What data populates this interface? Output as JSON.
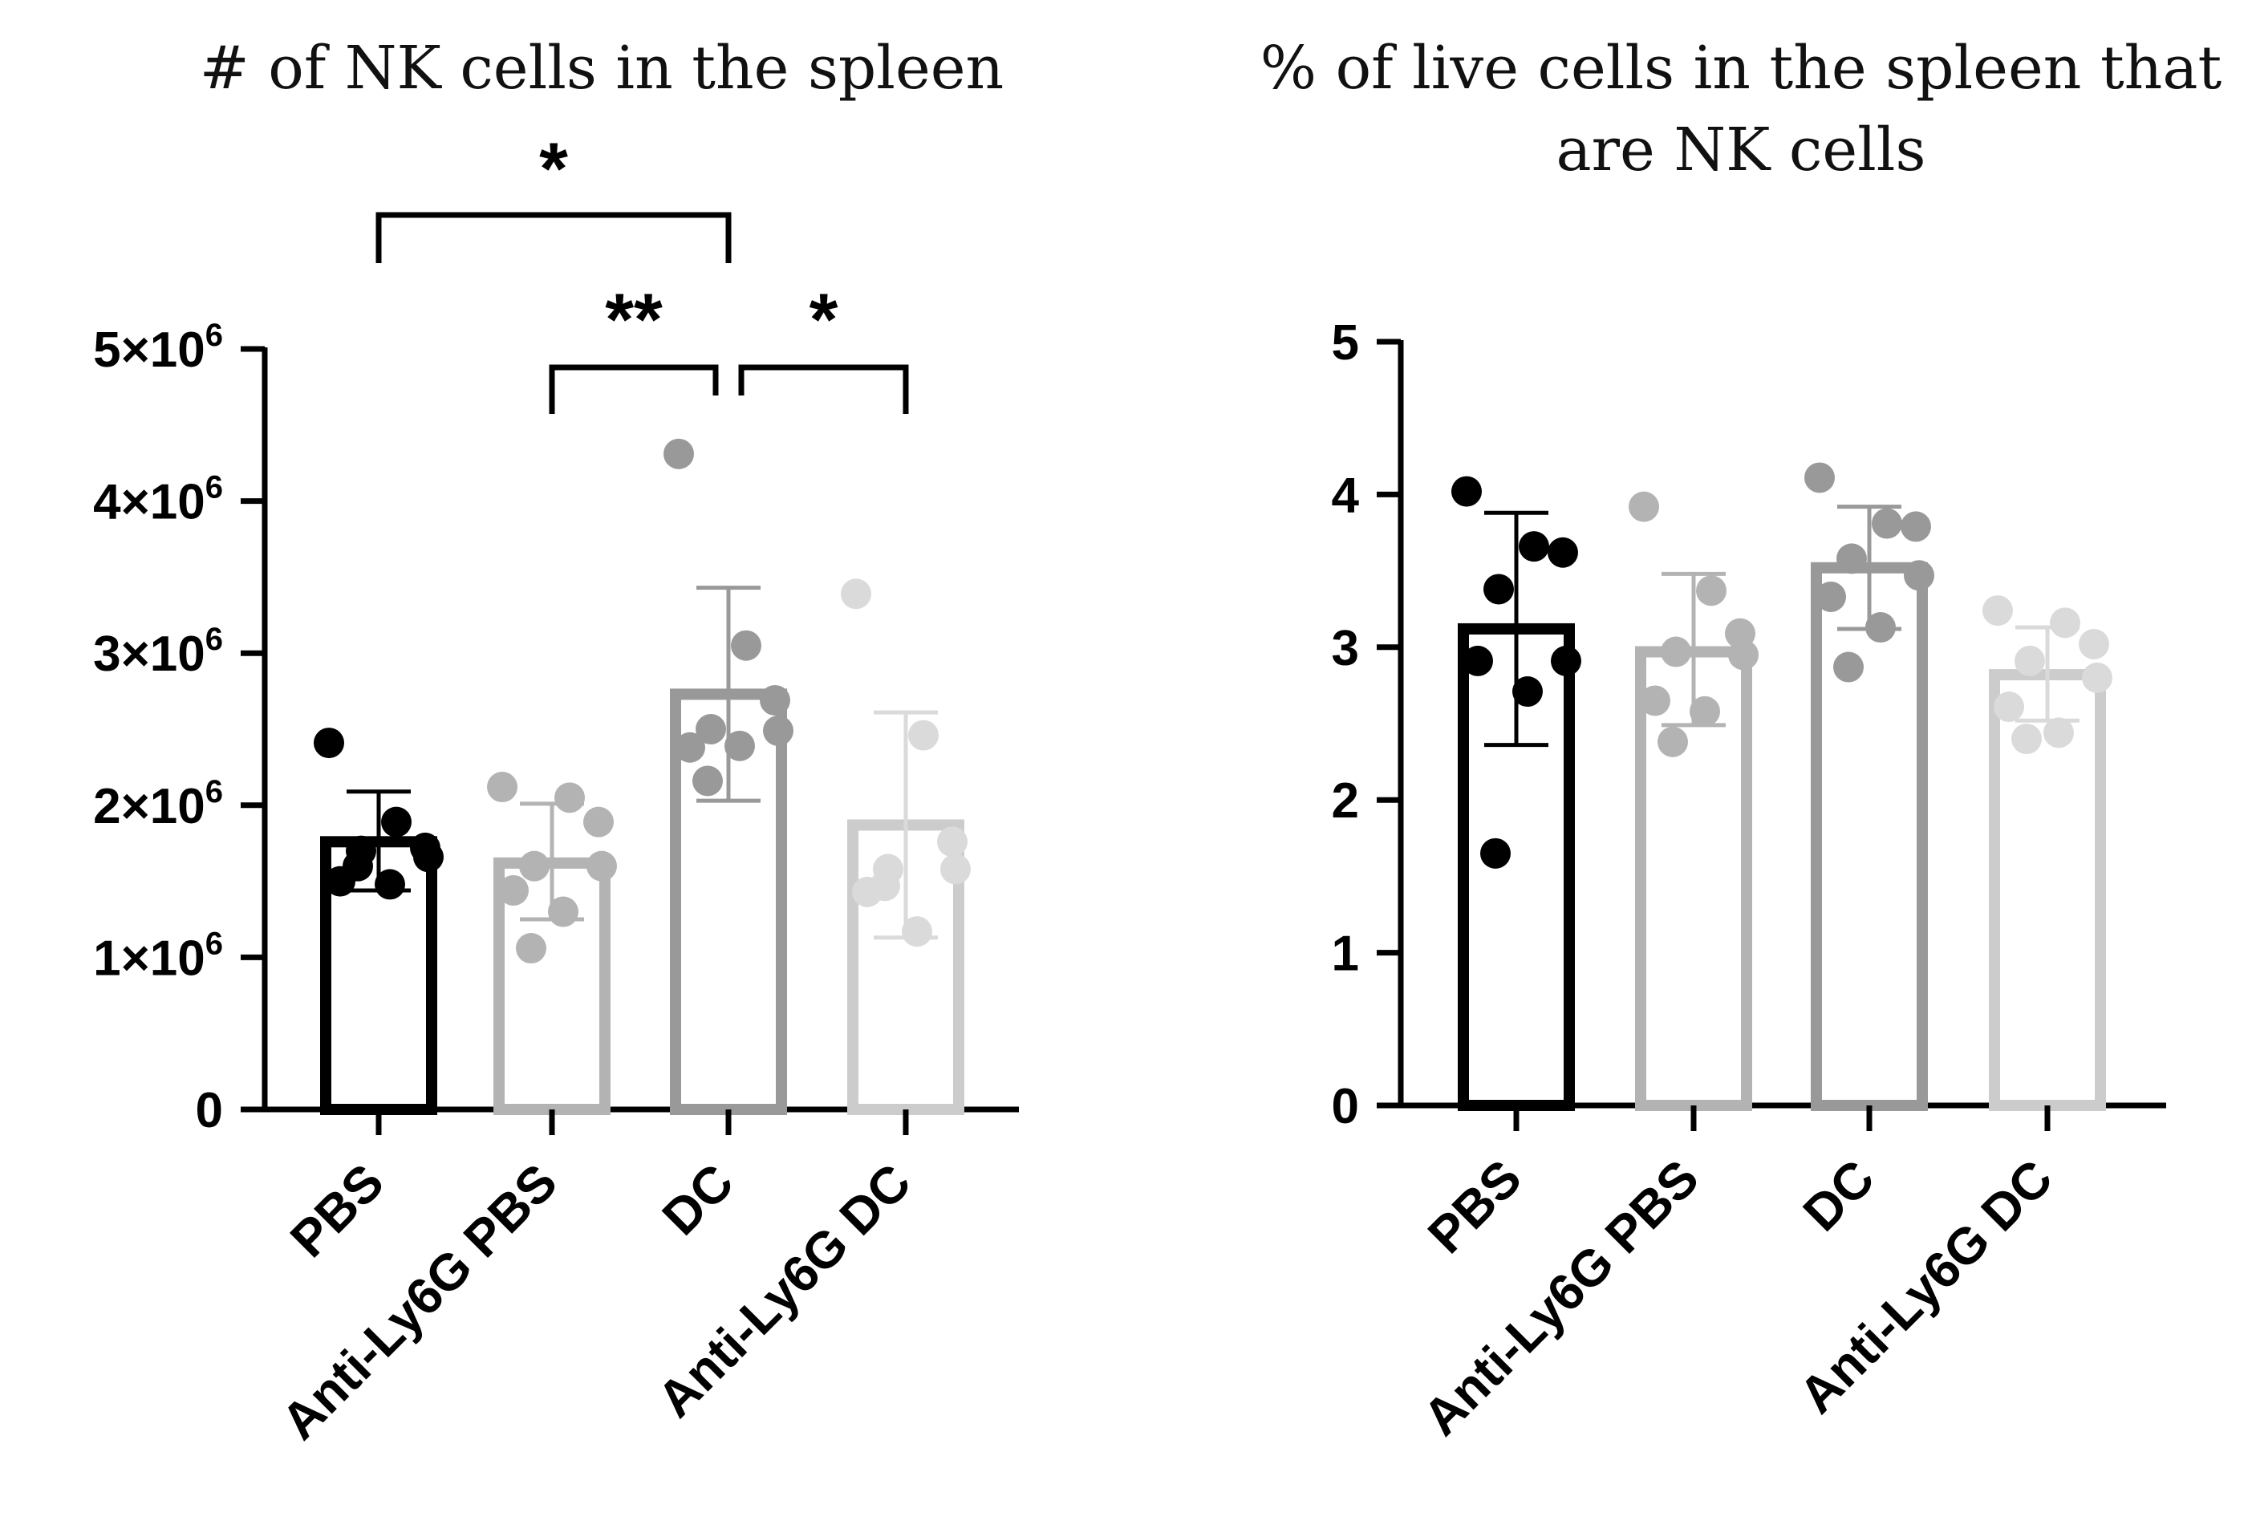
{
  "chart_data": [
    {
      "type": "bar",
      "title": "# of NK cells in the spleen",
      "title_lines": [
        "# of NK cells in the spleen"
      ],
      "xlabel": "",
      "ylabel": "",
      "ylim": [
        0,
        5000000
      ],
      "yticks": [
        {
          "value": 0,
          "mant": "0",
          "sup": ""
        },
        {
          "value": 1000000,
          "mant": "1×10",
          "sup": "6"
        },
        {
          "value": 2000000,
          "mant": "2×10",
          "sup": "6"
        },
        {
          "value": 3000000,
          "mant": "3×10",
          "sup": "6"
        },
        {
          "value": 4000000,
          "mant": "4×10",
          "sup": "6"
        },
        {
          "value": 5000000,
          "mant": "5×10",
          "sup": "6"
        }
      ],
      "categories": [
        "PBS",
        "Anti-Ly6G PBS",
        "DC",
        "Anti-Ly6G DC"
      ],
      "colors": [
        "#000000",
        "#b3b3b3",
        "#999999",
        "#cccccc"
      ],
      "point_colors": [
        "#000000",
        "#b3b3b3",
        "#999999",
        "#dadada"
      ],
      "values": [
        1760000,
        1620000,
        2730000,
        1870000
      ],
      "error": [
        {
          "low": 1440000,
          "high": 2090000
        },
        {
          "low": 1250000,
          "high": 2010000
        },
        {
          "low": 2030000,
          "high": 3430000
        },
        {
          "low": 1130000,
          "high": 2610000
        }
      ],
      "points": [
        [
          2410000,
          1890000,
          1720000,
          1700000,
          1660000,
          1500000,
          1480000,
          1600000
        ],
        [
          2120000,
          2050000,
          1890000,
          1600000,
          1600000,
          1440000,
          1300000,
          1060000
        ],
        [
          4310000,
          3050000,
          2690000,
          2500000,
          2490000,
          2380000,
          2390000,
          2160000
        ],
        [
          3390000,
          2460000,
          1760000,
          1580000,
          1580000,
          1430000,
          1170000,
          1470000
        ]
      ],
      "significance": [
        {
          "from": 0,
          "to": 2,
          "label": "*"
        },
        {
          "from": 1,
          "to": 2,
          "label": "**"
        },
        {
          "from": 2,
          "to": 3,
          "label": "*"
        }
      ]
    },
    {
      "type": "bar",
      "title": "% of live cells in the spleen that are NK cells",
      "title_lines": [
        "% of live cells in the spleen that",
        "are NK cells"
      ],
      "xlabel": "",
      "ylabel": "",
      "ylim": [
        0,
        5
      ],
      "yticks": [
        {
          "value": 0,
          "mant": "0",
          "sup": ""
        },
        {
          "value": 1,
          "mant": "1",
          "sup": ""
        },
        {
          "value": 2,
          "mant": "2",
          "sup": ""
        },
        {
          "value": 3,
          "mant": "3",
          "sup": ""
        },
        {
          "value": 4,
          "mant": "4",
          "sup": ""
        },
        {
          "value": 5,
          "mant": "5",
          "sup": ""
        }
      ],
      "categories": [
        "PBS",
        "Anti-Ly6G PBS",
        "DC",
        "Anti-Ly6G DC"
      ],
      "colors": [
        "#000000",
        "#b3b3b3",
        "#999999",
        "#cccccc"
      ],
      "point_colors": [
        "#000000",
        "#b3b3b3",
        "#999999",
        "#dadada"
      ],
      "values": [
        3.12,
        2.97,
        3.52,
        2.82
      ],
      "error": [
        {
          "low": 2.36,
          "high": 3.88
        },
        {
          "low": 2.49,
          "high": 3.48
        },
        {
          "low": 3.12,
          "high": 3.92
        },
        {
          "low": 2.52,
          "high": 3.13
        }
      ],
      "points": [
        [
          4.02,
          3.66,
          3.62,
          3.38,
          2.91,
          2.91,
          2.71,
          1.65
        ],
        [
          3.92,
          3.37,
          3.09,
          2.97,
          2.95,
          2.65,
          2.58,
          2.38
        ],
        [
          4.11,
          3.81,
          3.79,
          3.58,
          3.47,
          3.33,
          3.13,
          2.87
        ],
        [
          3.24,
          3.16,
          3.02,
          2.91,
          2.8,
          2.61,
          2.44,
          2.4
        ]
      ],
      "significance": []
    }
  ]
}
